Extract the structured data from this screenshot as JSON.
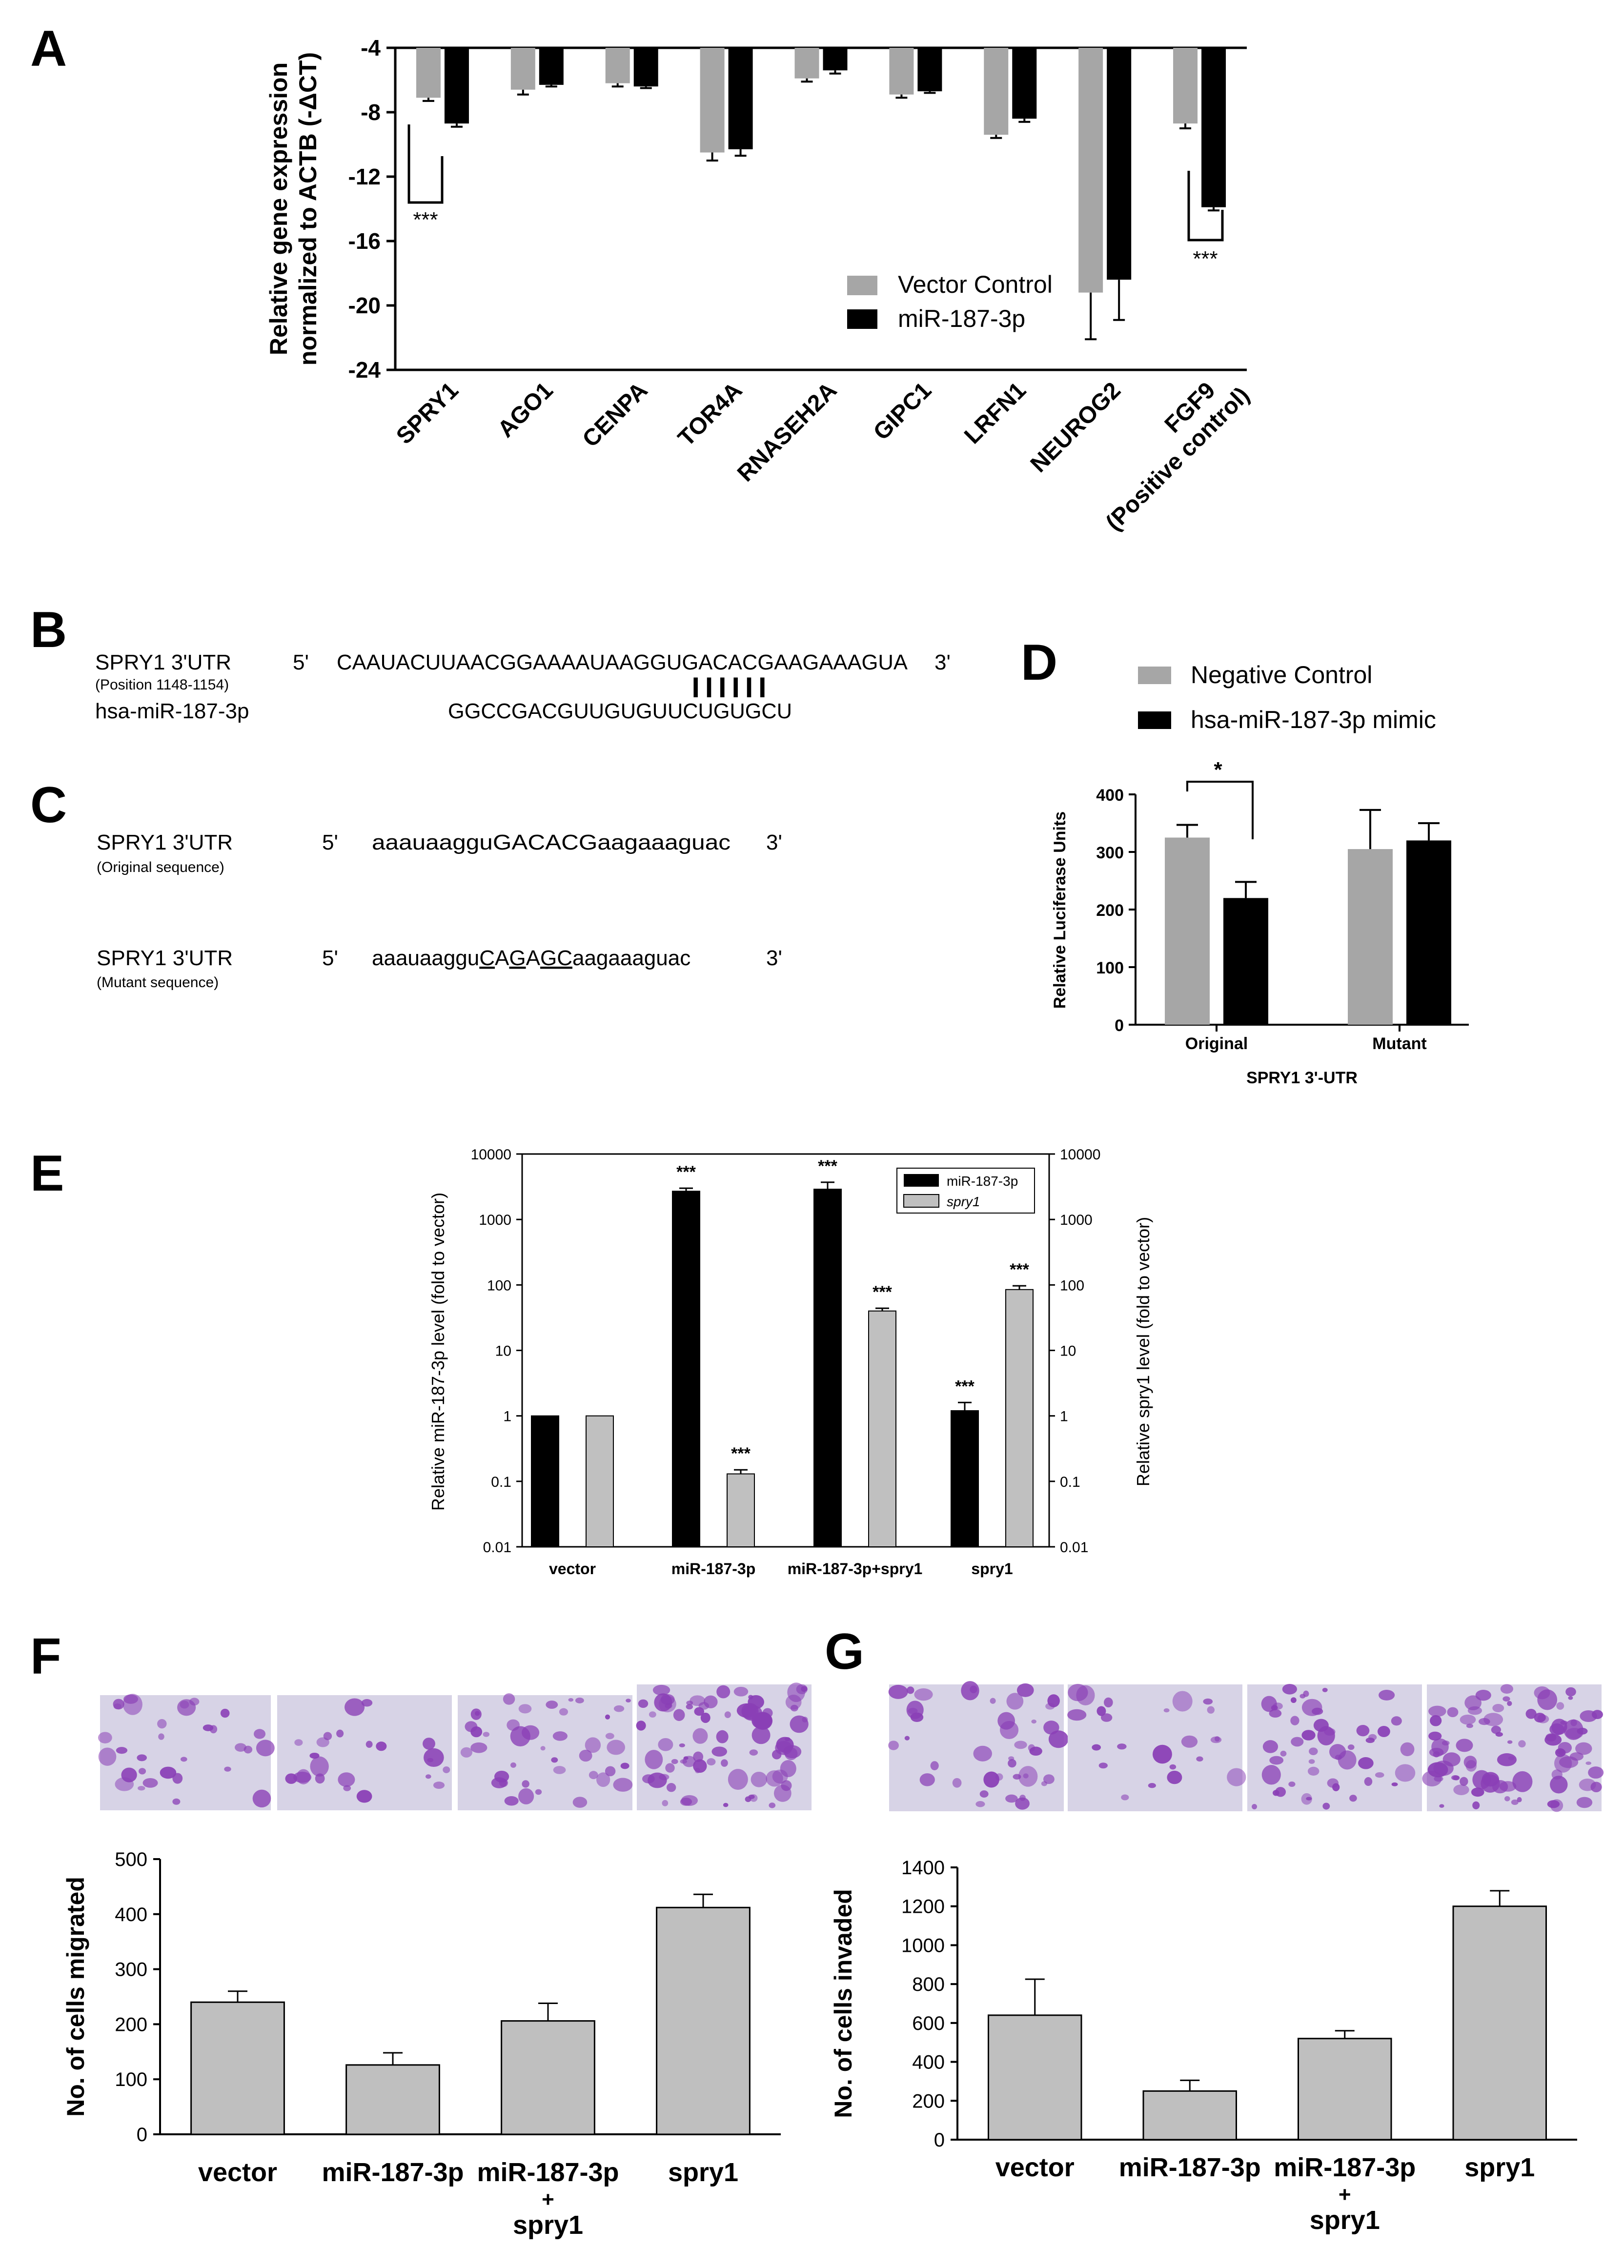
{
  "panels": {
    "a": "A",
    "b": "B",
    "c": "C",
    "d": "D",
    "e": "E",
    "f": "F",
    "g": "G"
  },
  "colors": {
    "gray": "#a6a6a6",
    "black": "#000000",
    "lightgray": "#c0c0c0",
    "bar_fg": "#bfbfbf",
    "crystal": "#8a3fb6"
  },
  "seqB": {
    "label1": "SPRY1 3'UTR",
    "label1_sub": "(Position 1148-1154)",
    "label2": "hsa-miR-187-3p",
    "five": "5'",
    "three": "3'",
    "utr": "CAAUACUUAACGGAAAAUAAGGUGACACGAAGAAAGUA",
    "pairs": "||||||",
    "mir": "GGCCGACGUUGUGUUCUGUGCU"
  },
  "seqC": {
    "label_orig": "SPRY1 3'UTR",
    "orig_sub": "(Original sequence)",
    "label_mut": "SPRY1 3'UTR",
    "mut_sub": "(Mutant sequence)",
    "five": "5'",
    "three": "3'",
    "orig_seq": "aaauaagguGACACGaagaaaguac",
    "mut_pre": "aaauaaggu",
    "mut_u1": "C",
    "mut_m1": "A",
    "mut_u2": "G",
    "mut_m2": "A",
    "mut_u3": "GC",
    "mut_post": "aagaaaguac"
  },
  "chart_data": [
    {
      "panel": "A",
      "type": "bar",
      "ylabel": "Relative gene expression normalized to ACTB (-ΔCT)",
      "ylabel_line1": "Relative gene expression",
      "ylabel_line2": "normalized to ACTB (-ΔCT)",
      "ylim": [
        -24,
        -4
      ],
      "yticks": [
        "-4",
        "-8",
        "-12",
        "-16",
        "-20",
        "-24"
      ],
      "categories": [
        "SPRY1",
        "AGO1",
        "CENPA",
        "TOR4A",
        "RNASEH2A",
        "GIPC1",
        "LRFN1",
        "NEUROG2",
        "FGF9"
      ],
      "category_sub": "(Positive control)",
      "series": [
        {
          "name": "Vector Control",
          "values": [
            -7.1,
            -6.6,
            -6.2,
            -10.5,
            -5.9,
            -6.9,
            -9.4,
            -19.2,
            -8.7
          ],
          "errors": [
            0.2,
            0.3,
            0.2,
            0.5,
            0.2,
            0.2,
            0.2,
            2.9,
            0.3
          ]
        },
        {
          "name": "miR-187-3p",
          "values": [
            -8.7,
            -6.3,
            -6.4,
            -10.3,
            -5.4,
            -6.7,
            -8.4,
            -18.4,
            -13.9
          ],
          "errors": [
            0.2,
            0.1,
            0.1,
            0.4,
            0.2,
            0.1,
            0.2,
            2.5,
            0.2
          ]
        }
      ],
      "sig": "***",
      "legend_position": "right"
    },
    {
      "panel": "D",
      "type": "bar",
      "ylabel": "Relative Luciferase Units",
      "xlabel": "SPRY1 3'-UTR",
      "ylim": [
        0,
        400
      ],
      "yticks": [
        "0",
        "100",
        "200",
        "300",
        "400"
      ],
      "categories": [
        "Original",
        "Mutant"
      ],
      "series": [
        {
          "name": "Negative Control",
          "values": [
            325,
            305
          ],
          "errors": [
            22,
            68
          ]
        },
        {
          "name": "hsa-miR-187-3p mimic",
          "values": [
            220,
            320
          ],
          "errors": [
            28,
            30
          ]
        }
      ],
      "sig": "*",
      "legend_position": "top"
    },
    {
      "panel": "E",
      "type": "bar",
      "scale": "log",
      "ylabel_left": "Relative miR-187-3p level (fold to vector)",
      "ylabel_right": "Relative spry1 level (fold to vector)",
      "ylim": [
        0.01,
        10000
      ],
      "yticks": [
        "0.01",
        "0.1",
        "1",
        "10",
        "100",
        "1000",
        "10000"
      ],
      "categories": [
        "vector",
        "miR-187-3p",
        "miR-187-3p+spry1",
        "spry1"
      ],
      "series": [
        {
          "name": "miR-187-3p",
          "values": [
            1,
            2700,
            2900,
            1.2
          ],
          "errors": [
            0,
            300,
            800,
            0.4
          ]
        },
        {
          "name": "spry1",
          "values": [
            1,
            0.13,
            40,
            85
          ],
          "errors": [
            0,
            0.02,
            4,
            12
          ]
        }
      ],
      "sig": [
        "",
        "***",
        "***",
        "***"
      ],
      "sig2": [
        "",
        "***",
        "***",
        "***"
      ],
      "legend_position": "top-right"
    },
    {
      "panel": "F",
      "type": "bar",
      "ylabel": "No. of cells migrated",
      "ylim": [
        0,
        500
      ],
      "yticks": [
        "0",
        "100",
        "200",
        "300",
        "400",
        "500"
      ],
      "categories": [
        "vector",
        "miR-187-3p",
        "miR-187-3p\n+\nspry1",
        "spry1"
      ],
      "values": [
        240,
        126,
        206,
        412
      ],
      "errors": [
        20,
        22,
        32,
        24
      ]
    },
    {
      "panel": "G",
      "type": "bar",
      "ylabel": "No. of cells invaded",
      "ylim": [
        0,
        1400
      ],
      "yticks": [
        "0",
        "200",
        "400",
        "600",
        "800",
        "1000",
        "1200",
        "1400"
      ],
      "categories": [
        "vector",
        "miR-187-3p",
        "miR-187-3p\n+\nspry1",
        "spry1"
      ],
      "values": [
        640,
        250,
        520,
        1200
      ],
      "errors": [
        185,
        55,
        40,
        80
      ]
    }
  ]
}
